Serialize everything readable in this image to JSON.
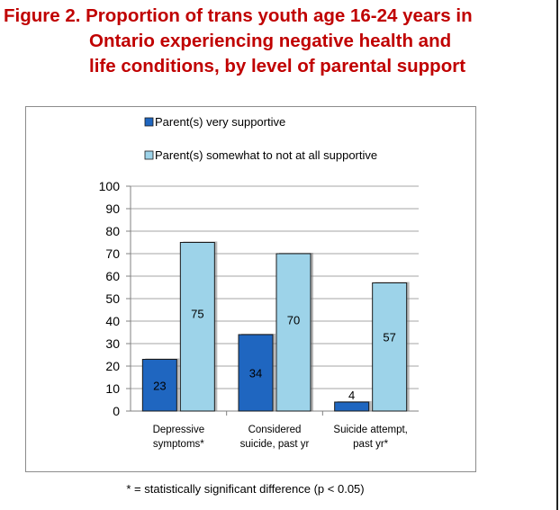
{
  "figure": {
    "title_line1": "Figure 2.  Proportion of trans youth age 16-24 years in",
    "title_line2": "Ontario experiencing negative health and",
    "title_line3": "life conditions, by level of parental support",
    "footnote": "* = statistically significant difference (p < 0.05)"
  },
  "chart_data": {
    "type": "bar",
    "categories": [
      [
        "Depressive",
        "symptoms*"
      ],
      [
        "Considered",
        "suicide, past yr"
      ],
      [
        "Suicide attempt,",
        "past yr*"
      ]
    ],
    "series": [
      {
        "name": "Parent(s) very supportive",
        "values": [
          23,
          34,
          4
        ],
        "color": "#1f66c0"
      },
      {
        "name": "Parent(s) somewhat to not at all supportive",
        "values": [
          75,
          70,
          57
        ],
        "color": "#9dd3e9"
      }
    ],
    "ylim": [
      0,
      100
    ],
    "yticks": [
      0,
      10,
      20,
      30,
      40,
      50,
      60,
      70,
      80,
      90,
      100
    ],
    "grid": true,
    "legend_position": "top"
  }
}
